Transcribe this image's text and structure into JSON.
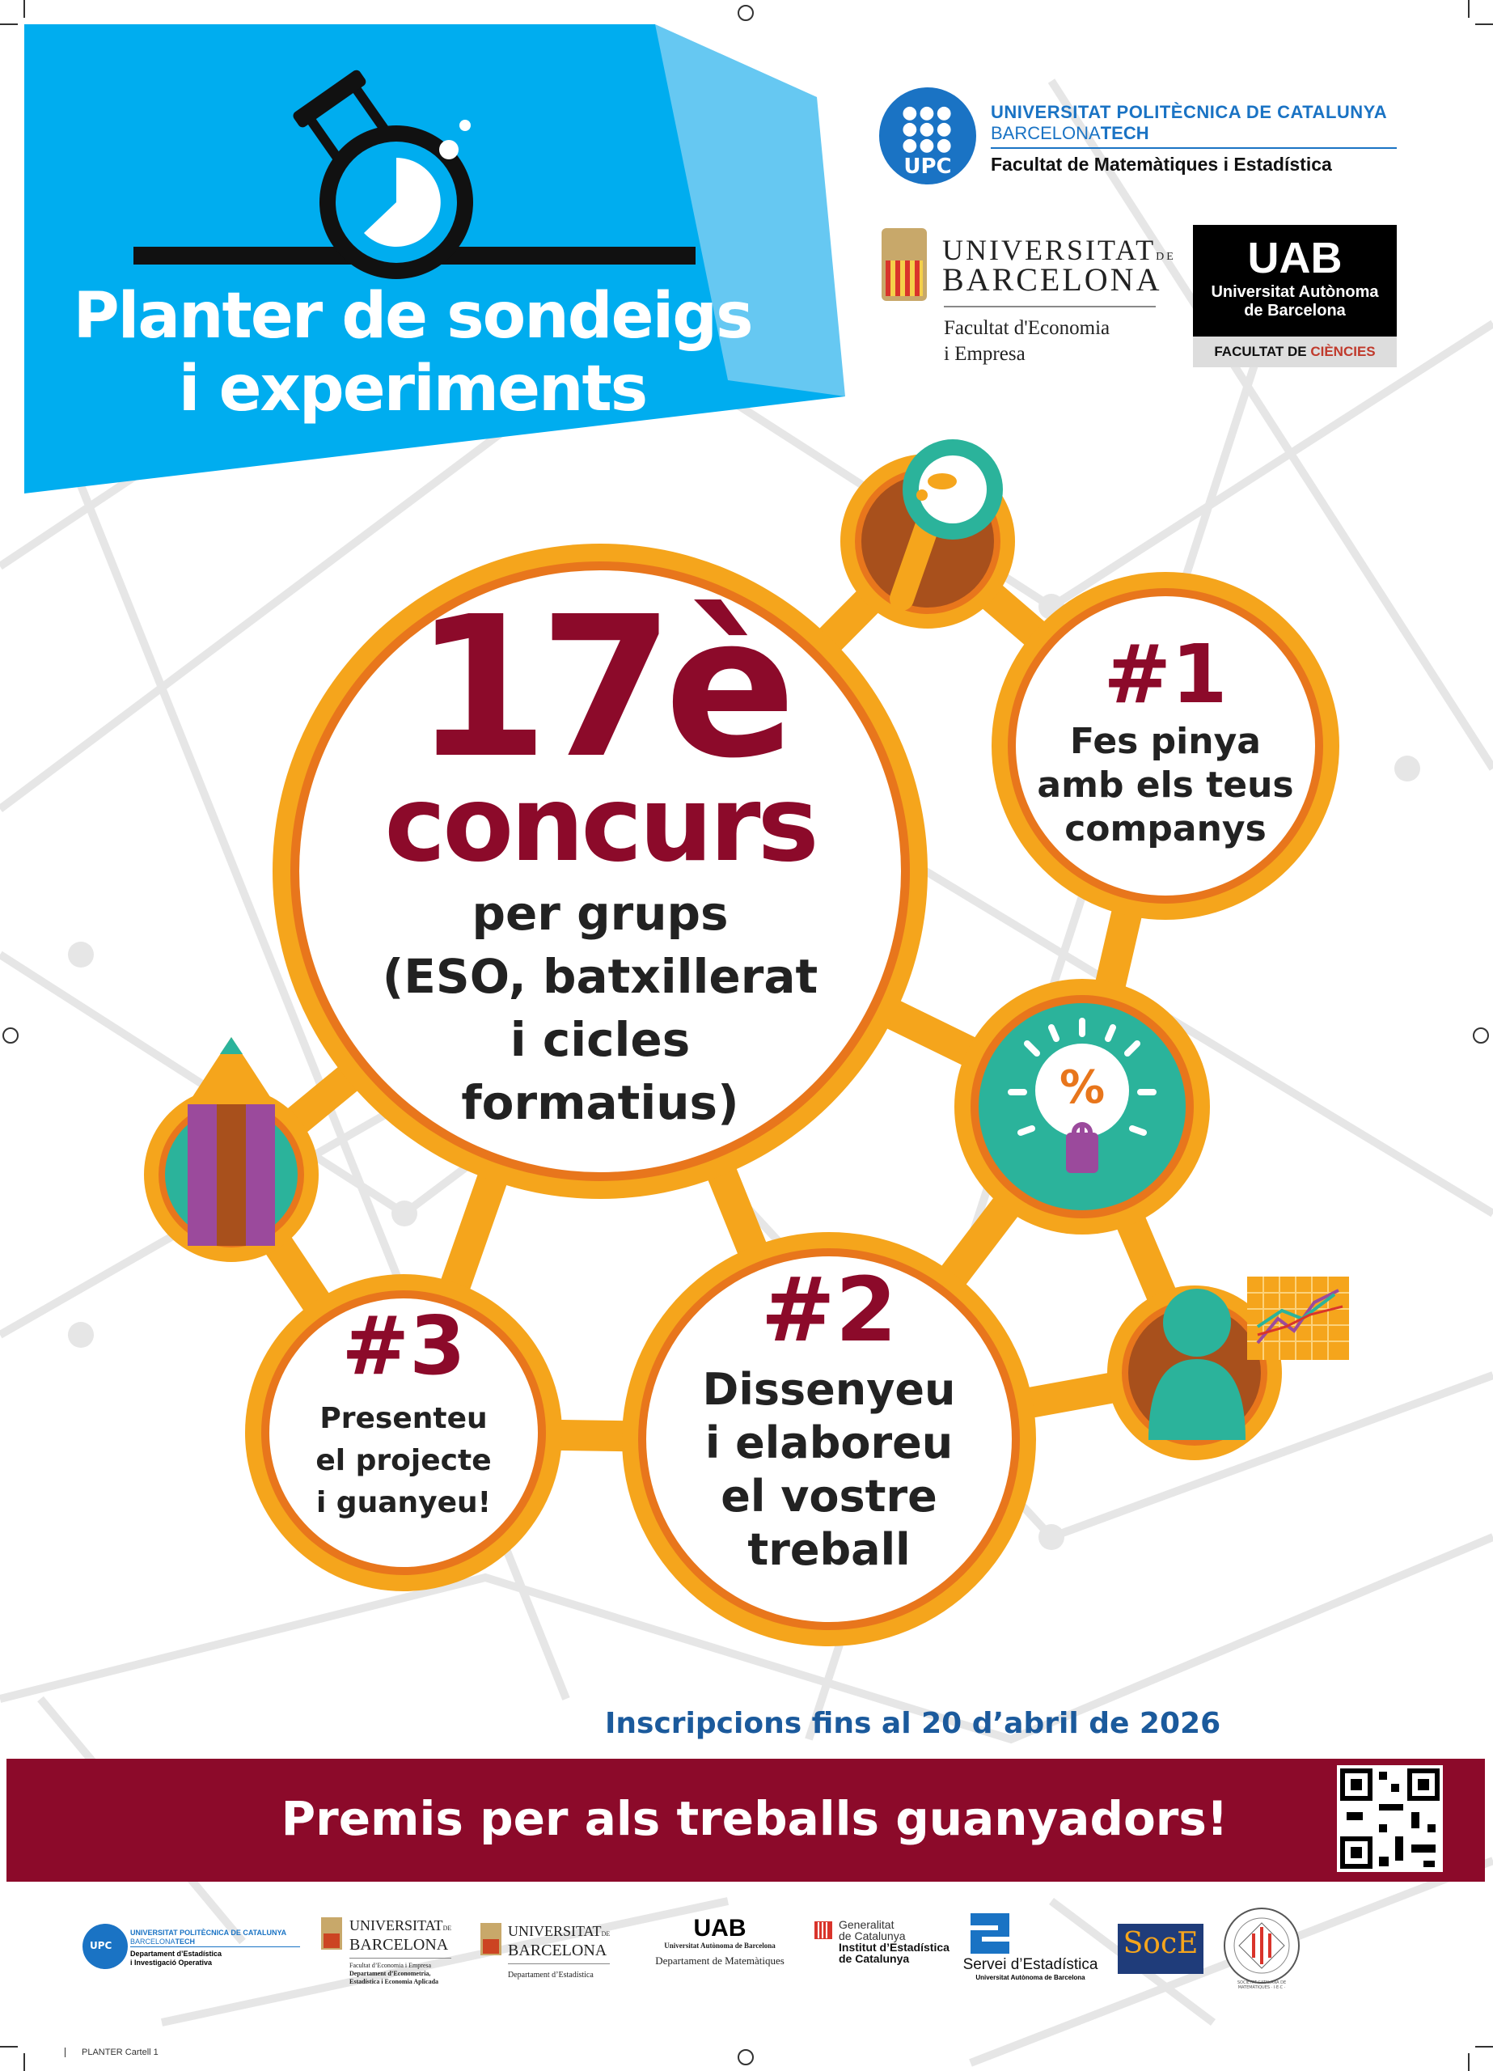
{
  "header": {
    "title_line1": "Planter de sondeigs",
    "title_line2": "i experiments"
  },
  "logos_top": {
    "upc": {
      "badge": "UPC",
      "name": "UNIVERSITAT POLITÈCNICA DE CATALUNYA",
      "sub_plain": "BARCELONA",
      "sub_bold": "TECH",
      "faculty": "Facultat de Matemàtiques i Estadística"
    },
    "ub": {
      "name1": "UNIVERSITAT",
      "de": "DE",
      "name2": "BARCELONA",
      "faculty1": "Facultat d'Economia",
      "faculty2": "i Empresa"
    },
    "uab": {
      "mark": "UAB",
      "name1": "Universitat Autònoma",
      "name2": "de Barcelona",
      "faculty_plain": "FACULTAT DE ",
      "faculty_accent": "CIÈNCIES"
    }
  },
  "main": {
    "edition": "17è",
    "contest": "concurs",
    "line1": "per grups",
    "line2": "(ESO, batxillerat",
    "line3": "i cicles",
    "line4": "formatius)"
  },
  "steps": [
    {
      "number": "#1",
      "lines": [
        "Fes pinya",
        "amb els teus",
        "companys"
      ]
    },
    {
      "number": "#2",
      "lines": [
        "Dissenyeu",
        "i elaboreu",
        "el vostre",
        "treball"
      ]
    },
    {
      "number": "#3",
      "lines": [
        "Presenteu",
        "el projecte",
        "i guanyeu!"
      ]
    }
  ],
  "icons": [
    "flask-icon",
    "magnifier-icon",
    "lightbulb-percent-icon",
    "pencil-icon",
    "person-chart-icon"
  ],
  "bulb_symbol": "%",
  "deadline": "Inscripcions fins al 20 d’abril de 2026",
  "banner": "Premis per als treballs guanyadors!",
  "logos_bottom": {
    "upc": {
      "badge": "UPC",
      "name": "UNIVERSITAT POLITÈCNICA DE CATALUNYA",
      "sub_plain": "BARCELONA",
      "sub_bold": "TECH",
      "dept1": "Departament d’Estadística",
      "dept2": "i Investigació Operativa"
    },
    "ub1": {
      "name1": "UNIVERSITAT",
      "de": "DE",
      "name2": "BARCELONA",
      "l1": "Facultat d’Economia i Empresa",
      "l2": "Departament d’Econometria,",
      "l3": "Estadística i Economia Aplicada"
    },
    "ub2": {
      "name1": "UNIVERSITAT",
      "de": "DE",
      "name2": "BARCELONA",
      "dept": "Departament d’Estadística"
    },
    "uab": {
      "mark": "UAB",
      "name": "Universitat Autònoma de Barcelona",
      "dept": "Departament de Matemàtiques"
    },
    "idescat": {
      "l1": "Generalitat",
      "l2": "de Catalunya",
      "l3": "Institut d’Estadística",
      "l4": "de Catalunya"
    },
    "servei": {
      "name": "Servei d’Estadística",
      "sub": "Universitat Autònoma de Barcelona"
    },
    "socee": {
      "mark": "SocE"
    },
    "scm": {
      "ring": "SOCIETAT CATALANA DE MATEMÀTIQUES · I·E·C ·"
    }
  },
  "footer_slug": "PLANTER Cartell   1",
  "colors": {
    "blue": "#00adef",
    "dark_red": "#8c0a2a",
    "orange": "#f5a51c",
    "inner_orange": "#e8761c",
    "teal": "#2bb39b",
    "deadline_blue": "#1b5a9c"
  }
}
